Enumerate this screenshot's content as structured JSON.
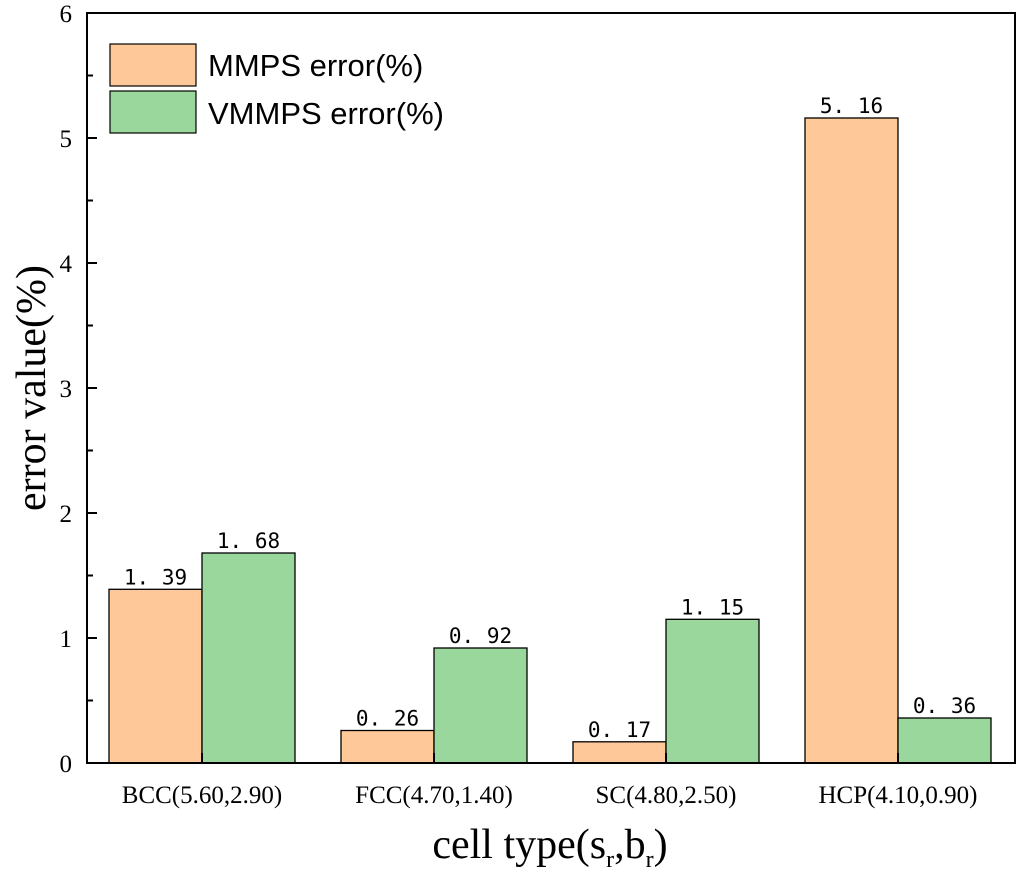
{
  "chart_data": {
    "type": "bar",
    "categories": [
      "BCC(5.60,2.90)",
      "FCC(4.70,1.40)",
      "SC(4.80,2.50)",
      "HCP(4.10,0.90)"
    ],
    "series": [
      {
        "name": "MMPS error(%)",
        "values": [
          1.39,
          0.26,
          0.17,
          5.16
        ],
        "labels": [
          "1. 39",
          "0. 26",
          "0. 17",
          "5. 16"
        ],
        "color": "#FFC898"
      },
      {
        "name": "VMMPS error(%)",
        "values": [
          1.68,
          0.92,
          1.15,
          0.36
        ],
        "labels": [
          "1. 68",
          "0. 92",
          "1. 15",
          "0. 36"
        ],
        "color": "#9AD79C"
      }
    ],
    "xlabel": {
      "main": "cell type(s",
      "sub1": "r",
      "mid": ",b",
      "sub2": "r",
      "end": ")"
    },
    "ylabel": "error value(%)",
    "ylim": [
      0,
      6
    ],
    "yticks": [
      "0",
      "1",
      "2",
      "3",
      "4",
      "5",
      "6"
    ],
    "legend": "top-left",
    "grid": false
  }
}
